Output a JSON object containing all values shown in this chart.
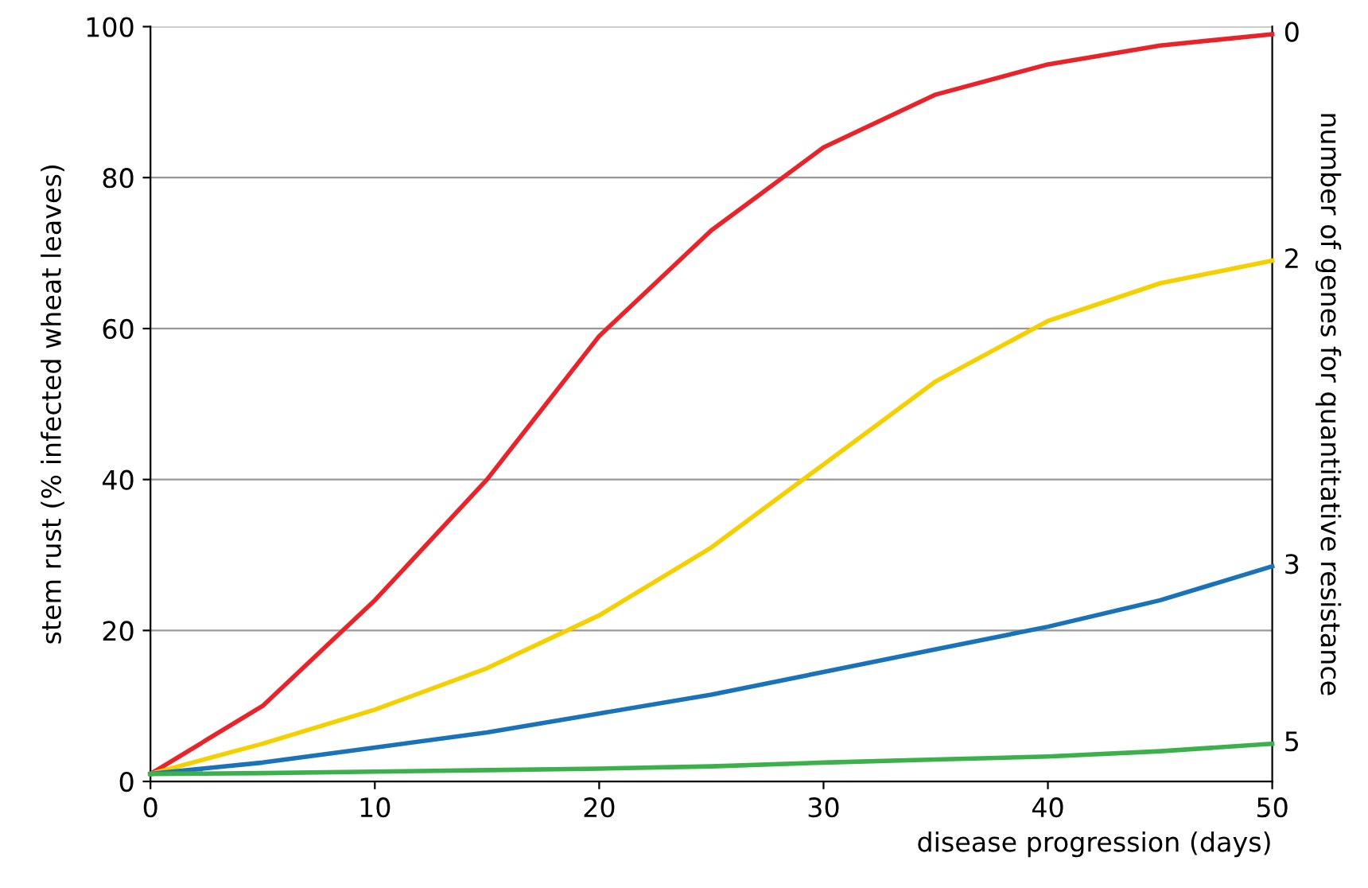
{
  "chart_data": {
    "type": "line",
    "xlabel": "disease progression (days)",
    "ylabel": "stem rust (% infected wheat leaves)",
    "y2label": "number of genes for quantitative resistance",
    "x": [
      0,
      5,
      10,
      15,
      20,
      25,
      30,
      35,
      40,
      45,
      50
    ],
    "series": [
      {
        "name": "0",
        "color": "#e8232a",
        "values": [
          1,
          10,
          24,
          40,
          59,
          73,
          84,
          91,
          95,
          97.5,
          99
        ]
      },
      {
        "name": "2",
        "color": "#f5d000",
        "values": [
          1,
          5,
          9.5,
          15,
          22,
          31,
          42,
          53,
          61,
          66,
          69
        ]
      },
      {
        "name": "3",
        "color": "#1a72b8",
        "values": [
          1,
          2.5,
          4.5,
          6.5,
          9,
          11.5,
          14.5,
          17.5,
          20.5,
          24,
          28.5
        ]
      },
      {
        "name": "5",
        "color": "#3cb04a",
        "values": [
          1,
          1.1,
          1.3,
          1.5,
          1.7,
          2,
          2.5,
          2.9,
          3.3,
          4,
          5
        ]
      }
    ],
    "xlim": [
      0,
      50
    ],
    "xticks": [
      0,
      10,
      20,
      30,
      40,
      50
    ],
    "ylim": [
      0,
      100
    ],
    "yticks": [
      0,
      20,
      40,
      60,
      80,
      100
    ],
    "grid": "y",
    "legend": false,
    "line_style": "solid",
    "marker": "none"
  }
}
